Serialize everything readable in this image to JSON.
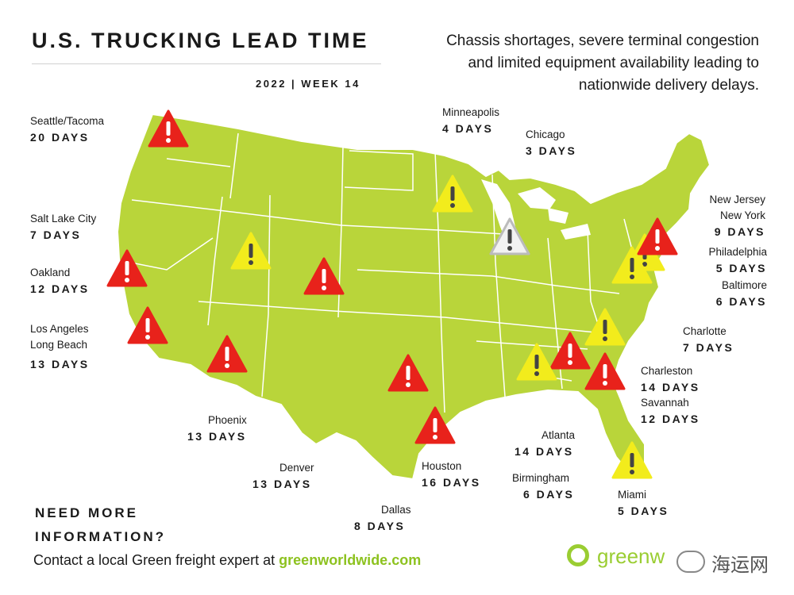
{
  "header": {
    "title": "U.S. TRUCKING LEAD TIME",
    "week": "2022 | WEEK 14",
    "subtitle_lines": [
      "Chassis shortages, severe terminal congestion",
      "and limited equipment availability leading to",
      "nationwide delivery delays."
    ]
  },
  "colors": {
    "land": "#b9d53a",
    "border": "#ffffff",
    "red": "#e8221b",
    "yellow": "#f2ec1c",
    "white": "#f2f2f2",
    "brand": "#8dc21f"
  },
  "locations": [
    {
      "id": "seattle",
      "city": "Seattle/Tacoma",
      "days": "20 DAYS",
      "level": "red"
    },
    {
      "id": "salt-lake-city",
      "city": "Salt Lake City",
      "days": "7 DAYS",
      "level": "yellow"
    },
    {
      "id": "oakland",
      "city": "Oakland",
      "days": "12 DAYS",
      "level": "red"
    },
    {
      "id": "los-angeles",
      "city": "Los Angeles",
      "city2": "Long Beach",
      "days": "13 DAYS",
      "level": "red"
    },
    {
      "id": "phoenix",
      "city": "Phoenix",
      "days": "13 DAYS",
      "level": "red"
    },
    {
      "id": "denver",
      "city": "Denver",
      "days": "13 DAYS",
      "level": "red"
    },
    {
      "id": "dallas",
      "city": "Dallas",
      "days": "8 DAYS",
      "level": "red"
    },
    {
      "id": "houston",
      "city": "Houston",
      "days": "16 DAYS",
      "level": "red"
    },
    {
      "id": "minneapolis",
      "city": "Minneapolis",
      "days": "4 DAYS",
      "level": "yellow"
    },
    {
      "id": "chicago",
      "city": "Chicago",
      "days": "3 DAYS",
      "level": "white"
    },
    {
      "id": "new-york",
      "city": "New Jersey",
      "city2": "New York",
      "days": "9 DAYS",
      "level": "red"
    },
    {
      "id": "philadelphia",
      "city": "Philadelphia",
      "days": "5 DAYS",
      "level": "yellow"
    },
    {
      "id": "baltimore",
      "city": "Baltimore",
      "days": "6 DAYS",
      "level": "yellow"
    },
    {
      "id": "charlotte",
      "city": "Charlotte",
      "days": "7 DAYS",
      "level": "yellow"
    },
    {
      "id": "charleston",
      "city": "Charleston",
      "days": "14 DAYS",
      "level": "red"
    },
    {
      "id": "savannah",
      "city": "Savannah",
      "days": "12 DAYS",
      "level": "red"
    },
    {
      "id": "atlanta",
      "city": "Atlanta",
      "days": "14 DAYS",
      "level": "red"
    },
    {
      "id": "birmingham",
      "city": "Birmingham",
      "days": "6 DAYS",
      "level": "yellow"
    },
    {
      "id": "miami",
      "city": "Miami",
      "days": "5 DAYS",
      "level": "yellow"
    }
  ],
  "footer": {
    "cta_line1": "NEED MORE",
    "cta_line2": "INFORMATION?",
    "contact_text": "Contact a local Green freight expert at ",
    "contact_link": "greenworldwide.com",
    "logo_text": "greenw",
    "watermark": "海运网"
  }
}
